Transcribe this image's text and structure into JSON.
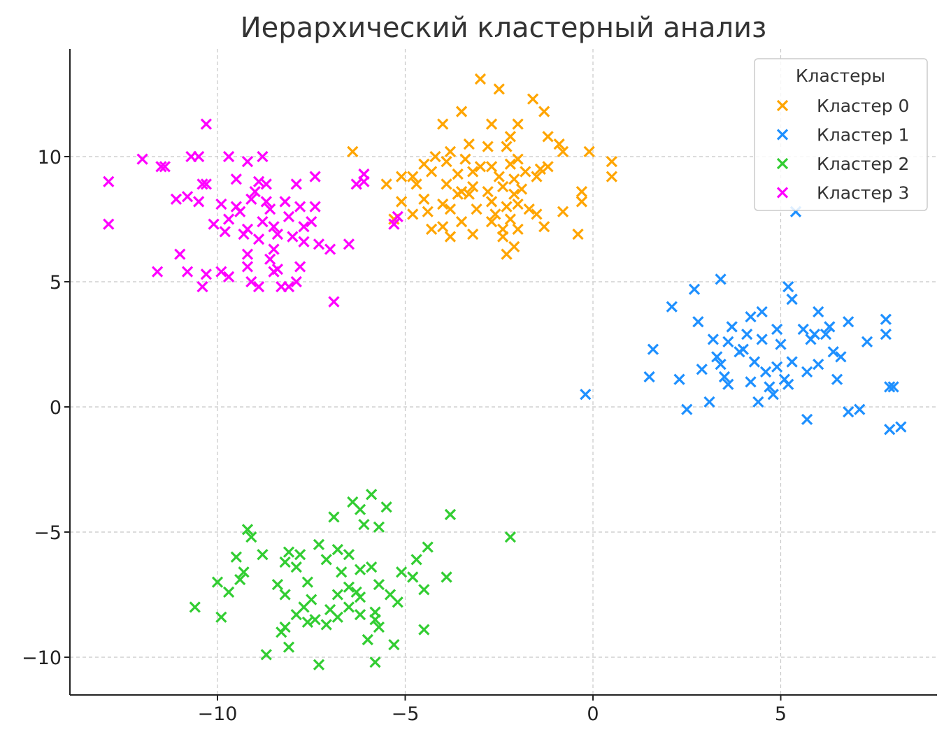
{
  "chart_data": {
    "type": "scatter",
    "title": "Иерархический кластерный анализ",
    "xlabel": "",
    "ylabel": "",
    "xlim": [
      -14,
      9.2
    ],
    "ylim": [
      -11.5,
      14.8
    ],
    "xticks": [
      -10,
      -5,
      0,
      5
    ],
    "yticks": [
      -10,
      -5,
      0,
      5,
      10
    ],
    "xtick_labels": [
      "−10",
      "−5",
      "0",
      "5"
    ],
    "ytick_labels": [
      "−10",
      "−5",
      "0",
      "5",
      "10"
    ],
    "grid": true,
    "marker": "x",
    "legend": {
      "title": "Кластеры",
      "position": "top-right"
    },
    "series": [
      {
        "name": "Кластер 0",
        "color": "#FFA500",
        "points": [
          [
            -6.4,
            10.2
          ],
          [
            -3,
            13.1
          ],
          [
            -2.5,
            12.7
          ],
          [
            -1.6,
            12.3
          ],
          [
            -1.3,
            11.8
          ],
          [
            -3.5,
            11.8
          ],
          [
            -4,
            11.3
          ],
          [
            -2.7,
            11.3
          ],
          [
            -2.2,
            10.8
          ],
          [
            -2,
            11.3
          ],
          [
            -1.2,
            10.8
          ],
          [
            -0.9,
            10.5
          ],
          [
            -0.8,
            10.2
          ],
          [
            -0.1,
            10.2
          ],
          [
            -3.3,
            10.5
          ],
          [
            -2.8,
            10.4
          ],
          [
            -2.3,
            10.4
          ],
          [
            -3.8,
            10.2
          ],
          [
            -4.2,
            10
          ],
          [
            -3.9,
            9.8
          ],
          [
            -3.4,
            9.9
          ],
          [
            -3,
            9.6
          ],
          [
            -2.7,
            9.6
          ],
          [
            -2.2,
            9.7
          ],
          [
            -2,
            9.9
          ],
          [
            -1.4,
            9.5
          ],
          [
            -1.2,
            9.6
          ],
          [
            -4.5,
            9.7
          ],
          [
            -4.3,
            9.4
          ],
          [
            -3.6,
            9.3
          ],
          [
            -3.2,
            9.4
          ],
          [
            -2.5,
            9.2
          ],
          [
            -2.1,
            9.1
          ],
          [
            -1.8,
            9.4
          ],
          [
            -1.5,
            9.2
          ],
          [
            -4.8,
            9.2
          ],
          [
            -5.1,
            9.2
          ],
          [
            -5.5,
            8.9
          ],
          [
            -4.7,
            8.9
          ],
          [
            -3.9,
            8.9
          ],
          [
            -3.5,
            8.6
          ],
          [
            -3.2,
            8.8
          ],
          [
            -2.8,
            8.6
          ],
          [
            -2.4,
            8.8
          ],
          [
            -2.1,
            8.5
          ],
          [
            -1.9,
            8.7
          ],
          [
            -0.3,
            8.6
          ],
          [
            0.5,
            9.8
          ],
          [
            0.5,
            9.2
          ],
          [
            -4.5,
            8.3
          ],
          [
            -4,
            8.1
          ],
          [
            -3.6,
            8.5
          ],
          [
            -3.3,
            8.5
          ],
          [
            -2.7,
            8.2
          ],
          [
            -2.3,
            8
          ],
          [
            -2,
            8.1
          ],
          [
            -1.7,
            7.9
          ],
          [
            -0.3,
            8.2
          ],
          [
            -4.8,
            7.7
          ],
          [
            -4.4,
            7.8
          ],
          [
            -3.8,
            7.9
          ],
          [
            -3.1,
            7.9
          ],
          [
            -2.6,
            7.7
          ],
          [
            -2.2,
            7.5
          ],
          [
            -1.5,
            7.7
          ],
          [
            -0.8,
            7.8
          ],
          [
            -4.3,
            7.1
          ],
          [
            -4,
            7.2
          ],
          [
            -3.5,
            7.4
          ],
          [
            -2.7,
            7.4
          ],
          [
            -2.4,
            7.1
          ],
          [
            -2,
            7.1
          ],
          [
            -1.3,
            7.2
          ],
          [
            -3.2,
            6.9
          ],
          [
            -2.4,
            6.8
          ],
          [
            -2.1,
            6.4
          ],
          [
            -2.3,
            6.1
          ],
          [
            -0.4,
            6.9
          ],
          [
            -3.8,
            6.8
          ],
          [
            -5.1,
            8.2
          ],
          [
            -5.3,
            7.5
          ]
        ]
      },
      {
        "name": "Кластер 1",
        "color": "#1E90FF",
        "points": [
          [
            5.4,
            7.8
          ],
          [
            3.4,
            5.1
          ],
          [
            2.7,
            4.7
          ],
          [
            5.2,
            4.8
          ],
          [
            2.1,
            4
          ],
          [
            4.5,
            3.8
          ],
          [
            5.3,
            4.3
          ],
          [
            6,
            3.8
          ],
          [
            6.8,
            3.4
          ],
          [
            7.8,
            3.5
          ],
          [
            7.8,
            2.9
          ],
          [
            2.8,
            3.4
          ],
          [
            3.7,
            3.2
          ],
          [
            4.2,
            3.6
          ],
          [
            4.9,
            3.1
          ],
          [
            5.6,
            3.1
          ],
          [
            6.3,
            3.2
          ],
          [
            1.6,
            2.3
          ],
          [
            3.2,
            2.7
          ],
          [
            3.6,
            2.6
          ],
          [
            4.1,
            2.9
          ],
          [
            4.5,
            2.7
          ],
          [
            5,
            2.5
          ],
          [
            5.8,
            2.7
          ],
          [
            6.4,
            2.2
          ],
          [
            7.3,
            2.6
          ],
          [
            3.3,
            2
          ],
          [
            3.9,
            2.2
          ],
          [
            4.3,
            1.8
          ],
          [
            4.9,
            1.6
          ],
          [
            5.3,
            1.8
          ],
          [
            6,
            1.7
          ],
          [
            6.6,
            2
          ],
          [
            1.5,
            1.2
          ],
          [
            2.3,
            1.1
          ],
          [
            2.9,
            1.5
          ],
          [
            3.4,
            1.7
          ],
          [
            3.5,
            1.2
          ],
          [
            4.6,
            1.4
          ],
          [
            5.1,
            1.1
          ],
          [
            5.7,
            1.4
          ],
          [
            6.5,
            1.1
          ],
          [
            3.6,
            0.9
          ],
          [
            4.2,
            1
          ],
          [
            4.7,
            0.8
          ],
          [
            5.2,
            0.9
          ],
          [
            4.4,
            0.2
          ],
          [
            4.8,
            0.5
          ],
          [
            3.1,
            0.2
          ],
          [
            2.5,
            -0.1
          ],
          [
            6.8,
            -0.2
          ],
          [
            7.1,
            -0.1
          ],
          [
            5.7,
            -0.5
          ],
          [
            7.9,
            0.8
          ],
          [
            8,
            0.8
          ],
          [
            7.9,
            -0.9
          ],
          [
            8.2,
            -0.8
          ],
          [
            -0.2,
            0.5
          ],
          [
            5.9,
            2.9
          ],
          [
            4,
            2.3
          ],
          [
            6.2,
            2.9
          ]
        ]
      },
      {
        "name": "Кластер 2",
        "color": "#32CD32",
        "points": [
          [
            -5.9,
            -3.5
          ],
          [
            -6.4,
            -3.8
          ],
          [
            -5.5,
            -4
          ],
          [
            -6.2,
            -4.1
          ],
          [
            -3.8,
            -4.3
          ],
          [
            -6.9,
            -4.4
          ],
          [
            -9.2,
            -4.9
          ],
          [
            -6.1,
            -4.7
          ],
          [
            -5.7,
            -4.8
          ],
          [
            -2.2,
            -5.2
          ],
          [
            -9.1,
            -5.2
          ],
          [
            -7.3,
            -5.5
          ],
          [
            -6.8,
            -5.7
          ],
          [
            -4.4,
            -5.6
          ],
          [
            -8.1,
            -5.8
          ],
          [
            -7.8,
            -5.9
          ],
          [
            -8.8,
            -5.9
          ],
          [
            -9.5,
            -6
          ],
          [
            -7.1,
            -6.1
          ],
          [
            -6.5,
            -5.9
          ],
          [
            -4.7,
            -6.1
          ],
          [
            -5.9,
            -6.4
          ],
          [
            -7.9,
            -6.4
          ],
          [
            -8.2,
            -6.2
          ],
          [
            -9.3,
            -6.6
          ],
          [
            -6.2,
            -6.5
          ],
          [
            -5.1,
            -6.6
          ],
          [
            -10,
            -7
          ],
          [
            -9.4,
            -6.9
          ],
          [
            -8.4,
            -7.1
          ],
          [
            -7.6,
            -7
          ],
          [
            -6.5,
            -7.2
          ],
          [
            -5.7,
            -7.1
          ],
          [
            -4.8,
            -6.8
          ],
          [
            -3.9,
            -6.8
          ],
          [
            -9.7,
            -7.4
          ],
          [
            -8.2,
            -7.5
          ],
          [
            -7.5,
            -7.7
          ],
          [
            -6.8,
            -7.5
          ],
          [
            -6.2,
            -7.6
          ],
          [
            -5.4,
            -7.5
          ],
          [
            -4.5,
            -7.3
          ],
          [
            -7.7,
            -8
          ],
          [
            -7,
            -8.1
          ],
          [
            -6.5,
            -8
          ],
          [
            -5.8,
            -8.2
          ],
          [
            -5.2,
            -7.8
          ],
          [
            -10.6,
            -8
          ],
          [
            -9.9,
            -8.4
          ],
          [
            -7.9,
            -8.3
          ],
          [
            -7.4,
            -8.5
          ],
          [
            -6.8,
            -8.4
          ],
          [
            -6.2,
            -8.3
          ],
          [
            -5.8,
            -8.5
          ],
          [
            -8.2,
            -8.8
          ],
          [
            -7.6,
            -8.6
          ],
          [
            -7.1,
            -8.7
          ],
          [
            -8.3,
            -9
          ],
          [
            -4.5,
            -8.9
          ],
          [
            -6,
            -9.3
          ],
          [
            -5.3,
            -9.5
          ],
          [
            -8.1,
            -9.6
          ],
          [
            -8.7,
            -9.9
          ],
          [
            -5.8,
            -10.2
          ],
          [
            -7.3,
            -10.3
          ],
          [
            -6.3,
            -7.4
          ],
          [
            -5.7,
            -8.8
          ],
          [
            -6.7,
            -6.6
          ]
        ]
      },
      {
        "name": "Кластер 3",
        "color": "#FF00FF",
        "points": [
          [
            -10.3,
            11.3
          ],
          [
            -12,
            9.9
          ],
          [
            -11.5,
            9.6
          ],
          [
            -11.4,
            9.6
          ],
          [
            -10.7,
            10
          ],
          [
            -10.5,
            10
          ],
          [
            -9.7,
            10
          ],
          [
            -9.2,
            9.8
          ],
          [
            -8.8,
            10
          ],
          [
            -12.9,
            9
          ],
          [
            -9.5,
            9.1
          ],
          [
            -10.4,
            8.9
          ],
          [
            -10.3,
            8.9
          ],
          [
            -8.9,
            9
          ],
          [
            -8.7,
            8.9
          ],
          [
            -7.9,
            8.9
          ],
          [
            -7.4,
            9.2
          ],
          [
            -6.3,
            8.9
          ],
          [
            -6.1,
            9.3
          ],
          [
            -6.1,
            9
          ],
          [
            -11.1,
            8.3
          ],
          [
            -10.8,
            8.4
          ],
          [
            -10.5,
            8.2
          ],
          [
            -9.9,
            8.1
          ],
          [
            -9.5,
            8
          ],
          [
            -9.1,
            8.3
          ],
          [
            -8.7,
            8.2
          ],
          [
            -8.2,
            8.2
          ],
          [
            -7.8,
            8
          ],
          [
            -7.4,
            8
          ],
          [
            -12.9,
            7.3
          ],
          [
            -10.1,
            7.3
          ],
          [
            -9.7,
            7.5
          ],
          [
            -9.2,
            7.1
          ],
          [
            -8.8,
            7.4
          ],
          [
            -8.5,
            7.2
          ],
          [
            -8.1,
            7.6
          ],
          [
            -7.7,
            7.2
          ],
          [
            -7.5,
            7.4
          ],
          [
            -9.8,
            7
          ],
          [
            -9.3,
            6.9
          ],
          [
            -8.9,
            6.7
          ],
          [
            -8.4,
            6.9
          ],
          [
            -8,
            6.8
          ],
          [
            -7.7,
            6.6
          ],
          [
            -7.3,
            6.5
          ],
          [
            -6.5,
            6.5
          ],
          [
            -7,
            6.3
          ],
          [
            -11,
            6.1
          ],
          [
            -9.2,
            6.1
          ],
          [
            -8.5,
            6.3
          ],
          [
            -8.6,
            5.9
          ],
          [
            -7.8,
            5.6
          ],
          [
            -11.6,
            5.4
          ],
          [
            -10.8,
            5.4
          ],
          [
            -10.3,
            5.3
          ],
          [
            -9.9,
            5.4
          ],
          [
            -9.7,
            5.2
          ],
          [
            -9.2,
            5.6
          ],
          [
            -8.5,
            5.4
          ],
          [
            -8.4,
            5.5
          ],
          [
            -9.1,
            5
          ],
          [
            -8.9,
            4.8
          ],
          [
            -8.3,
            4.8
          ],
          [
            -8.1,
            4.8
          ],
          [
            -7.9,
            5
          ],
          [
            -10.4,
            4.8
          ],
          [
            -6.9,
            4.2
          ],
          [
            -5.2,
            7.6
          ],
          [
            -5.3,
            7.3
          ],
          [
            -9.4,
            7.8
          ],
          [
            -9,
            8.6
          ],
          [
            -8.6,
            7.9
          ]
        ]
      }
    ]
  }
}
